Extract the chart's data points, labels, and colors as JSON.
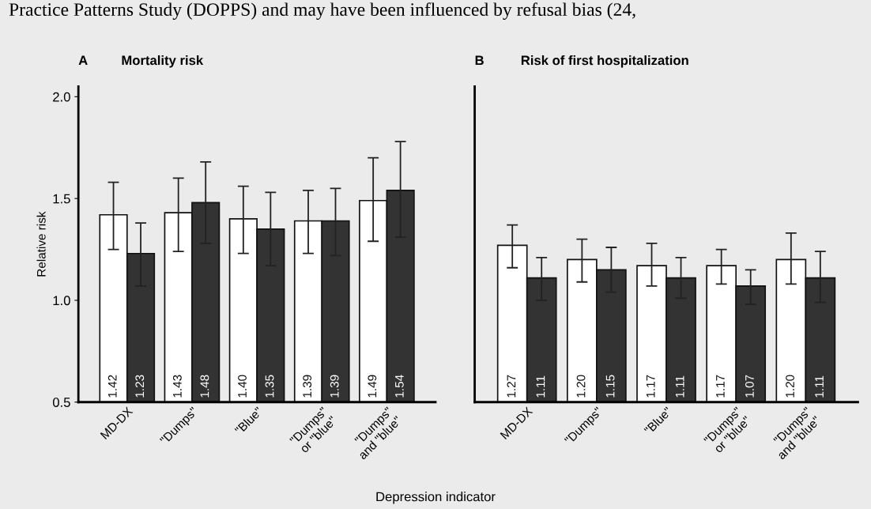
{
  "chart_data": [
    {
      "type": "bar",
      "title": "Mortality risk",
      "ylabel": "Relative risk",
      "xlabel": "Depression indicator",
      "annotations": [
        "A",
        "Practice Patterns Study (DOPPS) and may have been influenced by refusal bias (24,"
      ],
      "categories": [
        "MD-DX",
        "\"Dumps\"",
        "\"Blue\"",
        "\"Dumps\"\nor \"blue\"",
        "\"Dumps\"\nand \"blue\""
      ],
      "series": [
        {
          "color": "#ffffff",
          "values": [
            1.42,
            1.43,
            1.4,
            1.39,
            1.49
          ],
          "value_labels": [
            "1.42",
            "1.43",
            "1.40",
            "1.39",
            "1.49"
          ],
          "errors": [
            [
              1.25,
              1.58
            ],
            [
              1.24,
              1.6
            ],
            [
              1.23,
              1.56
            ],
            [
              1.23,
              1.54
            ],
            [
              1.29,
              1.7
            ]
          ]
        },
        {
          "color": "#333333",
          "values": [
            1.23,
            1.48,
            1.35,
            1.39,
            1.54
          ],
          "value_labels": [
            "1.23",
            "1.48",
            "1.35",
            "1.39",
            "1.54"
          ],
          "errors": [
            [
              1.07,
              1.38
            ],
            [
              1.28,
              1.68
            ],
            [
              1.17,
              1.53
            ],
            [
              1.22,
              1.55
            ],
            [
              1.31,
              1.78
            ]
          ]
        }
      ],
      "ylim": [
        0.5,
        2.05
      ],
      "yticks": [
        0.5,
        {
          "value": 1.0,
          "label": "1.0"
        },
        1.5,
        {
          "value": 2.0,
          "label": "2.0"
        }
      ],
      "grid": false
    },
    {
      "type": "bar",
      "title": "Risk of first hospitalization",
      "annotations": [
        "B"
      ],
      "categories": [
        "MD-DX",
        "\"Dumps\"",
        "\"Blue\"",
        "\"Dumps\"\nor \"blue\"",
        "\"Dumps\"\nand \"blue\""
      ],
      "series": [
        {
          "color": "#ffffff",
          "values": [
            1.27,
            1.2,
            1.17,
            1.17,
            1.2
          ],
          "value_labels": [
            "1.27",
            "1.20",
            "1.17",
            "1.17",
            "1.20"
          ],
          "errors": [
            [
              1.16,
              1.37
            ],
            [
              1.09,
              1.3
            ],
            [
              1.07,
              1.28
            ],
            [
              1.08,
              1.25
            ],
            [
              1.08,
              1.33
            ]
          ]
        },
        {
          "color": "#333333",
          "values": [
            1.11,
            1.15,
            1.11,
            1.07,
            1.11
          ],
          "value_labels": [
            "1.11",
            "1.15",
            "1.11",
            "1.07",
            "1.11"
          ],
          "errors": [
            [
              1.0,
              1.21
            ],
            [
              1.04,
              1.26
            ],
            [
              1.01,
              1.21
            ],
            [
              0.98,
              1.15
            ],
            [
              0.99,
              1.24
            ]
          ]
        }
      ],
      "ylim": [
        0.5,
        2.05
      ],
      "tick_labels": "x",
      "grid": false
    }
  ]
}
